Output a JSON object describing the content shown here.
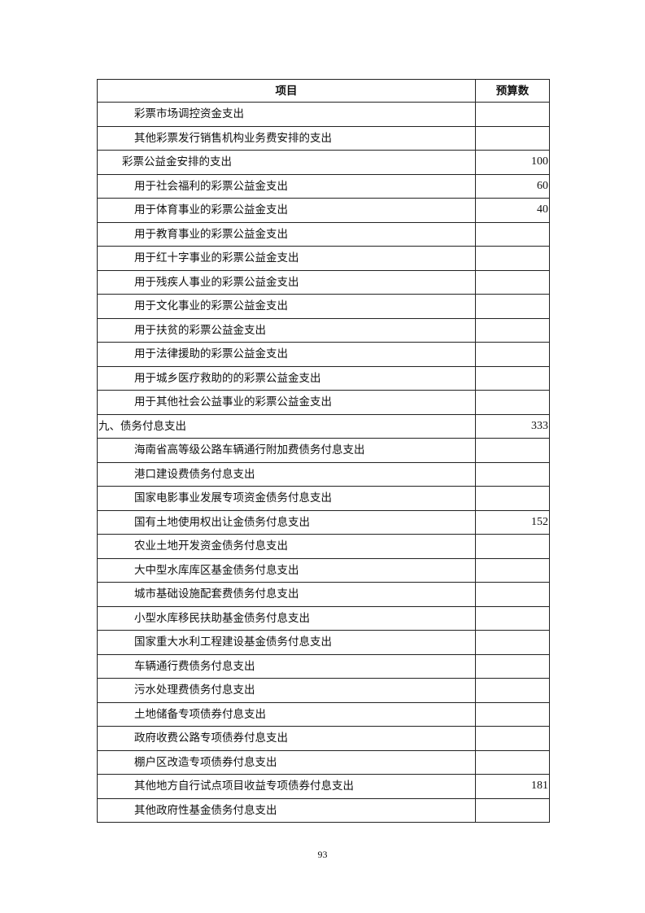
{
  "table": {
    "headers": [
      "项目",
      "预算数"
    ],
    "rows": [
      {
        "name": "彩票市场调控资金支出",
        "value": "",
        "level": 2
      },
      {
        "name": "其他彩票发行销售机构业务费安排的支出",
        "value": "",
        "level": 2
      },
      {
        "name": "彩票公益金安排的支出",
        "value": "100",
        "level": 1
      },
      {
        "name": "用于社会福利的彩票公益金支出",
        "value": "60",
        "level": 2
      },
      {
        "name": "用于体育事业的彩票公益金支出",
        "value": "40",
        "level": 2
      },
      {
        "name": "用于教育事业的彩票公益金支出",
        "value": "",
        "level": 2
      },
      {
        "name": "用于红十字事业的彩票公益金支出",
        "value": "",
        "level": 2
      },
      {
        "name": "用于残疾人事业的彩票公益金支出",
        "value": "",
        "level": 2
      },
      {
        "name": "用于文化事业的彩票公益金支出",
        "value": "",
        "level": 2
      },
      {
        "name": "用于扶贫的彩票公益金支出",
        "value": "",
        "level": 2
      },
      {
        "name": "用于法律援助的彩票公益金支出",
        "value": "",
        "level": 2
      },
      {
        "name": "用于城乡医疗救助的的彩票公益金支出",
        "value": "",
        "level": 2
      },
      {
        "name": "用于其他社会公益事业的彩票公益金支出",
        "value": "",
        "level": 2
      },
      {
        "name": "九、债务付息支出",
        "value": "333",
        "level": 0
      },
      {
        "name": "海南省高等级公路车辆通行附加费债务付息支出",
        "value": "",
        "level": 2
      },
      {
        "name": "港口建设费债务付息支出",
        "value": "",
        "level": 2
      },
      {
        "name": "国家电影事业发展专项资金债务付息支出",
        "value": "",
        "level": 2
      },
      {
        "name": "国有土地使用权出让金债务付息支出",
        "value": "152",
        "level": 2
      },
      {
        "name": "农业土地开发资金债务付息支出",
        "value": "",
        "level": 2
      },
      {
        "name": "大中型水库库区基金债务付息支出",
        "value": "",
        "level": 2
      },
      {
        "name": "城市基础设施配套费债务付息支出",
        "value": "",
        "level": 2
      },
      {
        "name": "小型水库移民扶助基金债务付息支出",
        "value": "",
        "level": 2
      },
      {
        "name": "国家重大水利工程建设基金债务付息支出",
        "value": "",
        "level": 2
      },
      {
        "name": "车辆通行费债务付息支出",
        "value": "",
        "level": 2
      },
      {
        "name": "污水处理费债务付息支出",
        "value": "",
        "level": 2
      },
      {
        "name": "土地储备专项债券付息支出",
        "value": "",
        "level": 2
      },
      {
        "name": "政府收费公路专项债券付息支出",
        "value": "",
        "level": 2
      },
      {
        "name": "棚户区改造专项债券付息支出",
        "value": "",
        "level": 2
      },
      {
        "name": "其他地方自行试点项目收益专项债券付息支出",
        "value": "181",
        "level": 2
      },
      {
        "name": "其他政府性基金债务付息支出",
        "value": "",
        "level": 2
      }
    ]
  },
  "page_number": "93"
}
